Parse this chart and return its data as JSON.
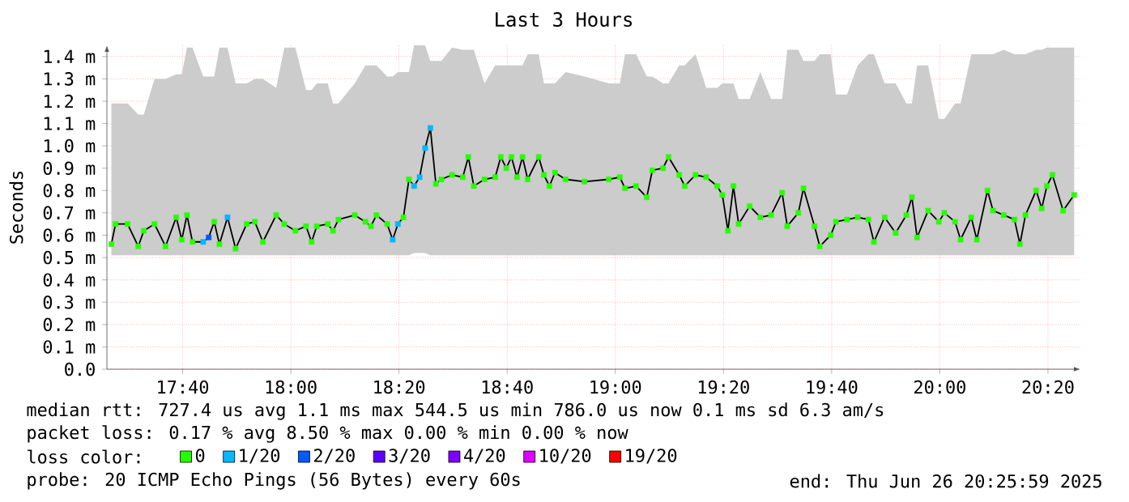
{
  "chart_data": {
    "type": "line",
    "title": "Last 3 Hours",
    "ylabel": "Seconds",
    "legend_title": "loss color:",
    "xlim": [
      17.4333,
      20.4333
    ],
    "ylim": [
      0,
      1.45
    ],
    "xticks": [
      {
        "value": 17.6667,
        "label": "17:40"
      },
      {
        "value": 18,
        "label": "18:00"
      },
      {
        "value": 18.3333,
        "label": "18:20"
      },
      {
        "value": 18.6667,
        "label": "18:40"
      },
      {
        "value": 19,
        "label": "19:00"
      },
      {
        "value": 19.3333,
        "label": "19:20"
      },
      {
        "value": 19.6667,
        "label": "19:40"
      },
      {
        "value": 20,
        "label": "20:00"
      },
      {
        "value": 20.3333,
        "label": "20:20"
      }
    ],
    "yticks": [
      {
        "value": 0,
        "label": "0.0"
      },
      {
        "value": 0.1,
        "label": "0.1 m"
      },
      {
        "value": 0.2,
        "label": "0.2 m"
      },
      {
        "value": 0.3,
        "label": "0.3 m"
      },
      {
        "value": 0.4,
        "label": "0.4 m"
      },
      {
        "value": 0.5,
        "label": "0.5 m"
      },
      {
        "value": 0.6,
        "label": "0.6 m"
      },
      {
        "value": 0.7,
        "label": "0.7 m"
      },
      {
        "value": 0.8,
        "label": "0.8 m"
      },
      {
        "value": 0.9,
        "label": "0.9 m"
      },
      {
        "value": 1.0,
        "label": "1.0 m"
      },
      {
        "value": 1.1,
        "label": "1.1 m"
      },
      {
        "value": 1.2,
        "label": "1.2 m"
      },
      {
        "value": 1.3,
        "label": "1.3 m"
      },
      {
        "value": 1.4,
        "label": "1.4 m"
      }
    ],
    "grid": true,
    "legend": "bottom",
    "marker": "square",
    "annotations": [
      "median rtt: 727.4 us avg 1.1 ms max 544.5 us min 786.0 us now 0.1 ms sd 6.3 am/s",
      "packet loss: 0.17 % avg 8.50 % max 0.00 % min 0.00 % now",
      "probe: 20 ICMP Echo Pings (56 Bytes) every 60s",
      "end: Thu Jun 26 20:25:59 2025"
    ],
    "series": [
      {
        "color": "#000000",
        "marker": "none",
        "upper": [
          1.19,
          1.19,
          1.19,
          1.14,
          1.14,
          1.3,
          1.3,
          1.32,
          1.32,
          1.44,
          1.44,
          1.31,
          1.31,
          1.31,
          1.44,
          1.44,
          1.28,
          1.28,
          1.3,
          1.3,
          1.26,
          1.44,
          1.44,
          1.25,
          1.25,
          1.28,
          1.28,
          1.19,
          1.19,
          1.28,
          1.36,
          1.36,
          1.36,
          1.31,
          1.31,
          1.33,
          1.33,
          1.33,
          1.45,
          1.45,
          1.45,
          1.38,
          1.38,
          1.38,
          1.44,
          1.43,
          1.43,
          1.43,
          1.28,
          1.36,
          1.36,
          1.36,
          1.36,
          1.36,
          1.36,
          1.41,
          1.41,
          1.28,
          1.28,
          1.28,
          1.33,
          1.31,
          1.28,
          1.28,
          1.41,
          1.41,
          1.31,
          1.31,
          1.28,
          1.28,
          1.36,
          1.36,
          1.41,
          1.26,
          1.26,
          1.28,
          1.28,
          1.28,
          1.21,
          1.21,
          1.33,
          1.21,
          1.21,
          1.43,
          1.43,
          1.38,
          1.38,
          1.41,
          1.41,
          1.23,
          1.23,
          1.36,
          1.41,
          1.41,
          1.28,
          1.28,
          1.19,
          1.19,
          1.36,
          1.36,
          1.12,
          1.12,
          1.19,
          1.19,
          1.41,
          1.41,
          1.41,
          1.41,
          1.43,
          1.41,
          1.41,
          1.41,
          1.43,
          1.43,
          1.44,
          1.44,
          1.44,
          1.44
        ],
        "lower": [
          0.51,
          0.51,
          0.51,
          0.51,
          0.51,
          0.51,
          0.51,
          0.51,
          0.51,
          0.51,
          0.51,
          0.51,
          0.51,
          0.51,
          0.51,
          0.51,
          0.51,
          0.51,
          0.51,
          0.51,
          0.51,
          0.51,
          0.51,
          0.51,
          0.51,
          0.51,
          0.51,
          0.51,
          0.51,
          0.51,
          0.51,
          0.51,
          0.51,
          0.51,
          0.51,
          0.51,
          0.51,
          0.51,
          0.52,
          0.52,
          0.52,
          0.51,
          0.51,
          0.51,
          0.51,
          0.51,
          0.51,
          0.51,
          0.51,
          0.51,
          0.51,
          0.51,
          0.51,
          0.51,
          0.51,
          0.51,
          0.51,
          0.51,
          0.51,
          0.51,
          0.51,
          0.51,
          0.51,
          0.51,
          0.51,
          0.51,
          0.51,
          0.51,
          0.51,
          0.51,
          0.51,
          0.51,
          0.51,
          0.51,
          0.51,
          0.51,
          0.51,
          0.51,
          0.51,
          0.51,
          0.51,
          0.51,
          0.51,
          0.51,
          0.51,
          0.51,
          0.51,
          0.51,
          0.51,
          0.51,
          0.51,
          0.51,
          0.51,
          0.51,
          0.51,
          0.51,
          0.51,
          0.51,
          0.51,
          0.51,
          0.51,
          0.51,
          0.51,
          0.51,
          0.51,
          0.51,
          0.51,
          0.51,
          0.51,
          0.51,
          0.51,
          0.51,
          0.51,
          0.51,
          0.51,
          0.51,
          0.51,
          0.51
        ],
        "x": [
          17.447,
          17.46,
          17.497,
          17.53,
          17.547,
          17.58,
          17.614,
          17.647,
          17.664,
          17.68,
          17.697,
          17.73,
          17.747,
          17.764,
          17.78,
          17.805,
          17.83,
          17.864,
          17.889,
          17.914,
          17.955,
          17.98,
          18.014,
          18.047,
          18.064,
          18.08,
          18.114,
          18.13,
          18.147,
          18.197,
          18.23,
          18.247,
          18.264,
          18.297,
          18.314,
          18.33,
          18.347,
          18.364,
          18.38,
          18.397,
          18.414,
          18.43,
          18.447,
          18.464,
          18.497,
          18.53,
          18.547,
          18.564,
          18.597,
          18.63,
          18.647,
          18.664,
          18.68,
          18.697,
          18.714,
          18.73,
          18.764,
          18.78,
          18.797,
          18.814,
          18.847,
          18.905,
          18.98,
          19.014,
          19.03,
          19.064,
          19.097,
          19.114,
          19.147,
          19.164,
          19.197,
          19.214,
          19.247,
          19.28,
          19.314,
          19.33,
          19.347,
          19.364,
          19.38,
          19.414,
          19.447,
          19.48,
          19.514,
          19.53,
          19.564,
          19.58,
          19.614,
          19.63,
          19.664,
          19.68,
          19.714,
          19.747,
          19.78,
          19.797,
          19.83,
          19.864,
          19.897,
          19.914,
          19.93,
          19.964,
          19.997,
          20.014,
          20.047,
          20.064,
          20.097,
          20.114,
          20.147,
          20.164,
          20.197,
          20.23,
          20.247,
          20.264,
          20.297,
          20.314,
          20.33,
          20.347,
          20.38,
          20.414
        ],
        "values": [
          0.56,
          0.65,
          0.65,
          0.55,
          0.62,
          0.65,
          0.55,
          0.68,
          0.58,
          0.69,
          0.57,
          0.57,
          0.59,
          0.66,
          0.56,
          0.68,
          0.54,
          0.65,
          0.66,
          0.57,
          0.69,
          0.65,
          0.62,
          0.64,
          0.57,
          0.64,
          0.65,
          0.62,
          0.67,
          0.69,
          0.66,
          0.64,
          0.69,
          0.65,
          0.58,
          0.65,
          0.68,
          0.85,
          0.82,
          0.86,
          0.99,
          1.08,
          0.83,
          0.85,
          0.87,
          0.86,
          0.95,
          0.82,
          0.85,
          0.86,
          0.95,
          0.9,
          0.95,
          0.86,
          0.95,
          0.85,
          0.95,
          0.87,
          0.82,
          0.88,
          0.85,
          0.84,
          0.85,
          0.86,
          0.81,
          0.82,
          0.77,
          0.89,
          0.9,
          0.95,
          0.87,
          0.82,
          0.87,
          0.86,
          0.82,
          0.78,
          0.62,
          0.82,
          0.65,
          0.73,
          0.68,
          0.69,
          0.79,
          0.64,
          0.7,
          0.81,
          0.64,
          0.55,
          0.6,
          0.66,
          0.67,
          0.68,
          0.67,
          0.57,
          0.68,
          0.61,
          0.69,
          0.77,
          0.59,
          0.71,
          0.66,
          0.7,
          0.66,
          0.58,
          0.68,
          0.58,
          0.8,
          0.71,
          0.69,
          0.67,
          0.56,
          0.69,
          0.8,
          0.72,
          0.82,
          0.87,
          0.71,
          0.78
        ]
      },
      {
        "type": "scatter",
        "name": "0",
        "color": "#26ff00",
        "x": [
          17.447,
          17.46,
          17.497,
          17.53,
          17.547,
          17.58,
          17.614,
          17.647,
          17.664,
          17.68,
          17.697,
          17.764,
          17.78,
          17.83,
          17.864,
          17.889,
          17.914,
          17.955,
          17.98,
          18.014,
          18.047,
          18.064,
          18.08,
          18.114,
          18.13,
          18.147,
          18.197,
          18.23,
          18.247,
          18.264,
          18.297,
          18.347,
          18.364,
          18.447,
          18.464,
          18.497,
          18.53,
          18.547,
          18.564,
          18.597,
          18.63,
          18.647,
          18.664,
          18.68,
          18.697,
          18.714,
          18.73,
          18.764,
          18.78,
          18.797,
          18.814,
          18.847,
          18.905,
          18.98,
          19.014,
          19.03,
          19.064,
          19.097,
          19.114,
          19.147,
          19.164,
          19.197,
          19.214,
          19.247,
          19.28,
          19.314,
          19.33,
          19.347,
          19.364,
          19.38,
          19.414,
          19.447,
          19.48,
          19.514,
          19.53,
          19.564,
          19.58,
          19.614,
          19.63,
          19.664,
          19.68,
          19.714,
          19.747,
          19.78,
          19.797,
          19.83,
          19.864,
          19.897,
          19.914,
          19.93,
          19.964,
          19.997,
          20.014,
          20.047,
          20.064,
          20.097,
          20.114,
          20.147,
          20.164,
          20.197,
          20.23,
          20.247,
          20.264,
          20.297,
          20.314,
          20.33,
          20.347,
          20.38,
          20.414
        ],
        "values": [
          0.56,
          0.65,
          0.65,
          0.55,
          0.62,
          0.65,
          0.55,
          0.68,
          0.58,
          0.69,
          0.57,
          0.66,
          0.56,
          0.54,
          0.65,
          0.66,
          0.57,
          0.69,
          0.65,
          0.62,
          0.64,
          0.57,
          0.64,
          0.65,
          0.62,
          0.67,
          0.69,
          0.66,
          0.64,
          0.69,
          0.65,
          0.68,
          0.85,
          0.83,
          0.85,
          0.87,
          0.86,
          0.95,
          0.82,
          0.85,
          0.86,
          0.95,
          0.9,
          0.95,
          0.86,
          0.95,
          0.85,
          0.95,
          0.87,
          0.82,
          0.88,
          0.85,
          0.84,
          0.85,
          0.86,
          0.81,
          0.82,
          0.77,
          0.89,
          0.9,
          0.95,
          0.87,
          0.82,
          0.87,
          0.86,
          0.82,
          0.78,
          0.62,
          0.82,
          0.65,
          0.73,
          0.68,
          0.69,
          0.79,
          0.64,
          0.7,
          0.81,
          0.64,
          0.55,
          0.6,
          0.66,
          0.67,
          0.68,
          0.67,
          0.57,
          0.68,
          0.61,
          0.69,
          0.77,
          0.59,
          0.71,
          0.66,
          0.7,
          0.66,
          0.58,
          0.68,
          0.58,
          0.8,
          0.71,
          0.69,
          0.67,
          0.56,
          0.69,
          0.8,
          0.72,
          0.82,
          0.87,
          0.71,
          0.78
        ]
      },
      {
        "type": "scatter",
        "name": "1/20",
        "color": "#00b8ff",
        "x": [
          17.73,
          17.805,
          18.314,
          18.33,
          18.38,
          18.397,
          18.414,
          18.43
        ],
        "values": [
          0.57,
          0.68,
          0.58,
          0.65,
          0.82,
          0.86,
          0.99,
          1.08
        ]
      },
      {
        "type": "scatter",
        "name": "2/20",
        "color": "#0059ff",
        "x": [
          17.747
        ],
        "values": [
          0.59
        ]
      },
      {
        "type": "scatter",
        "name": "3/20",
        "color": "#5e00ff"
      },
      {
        "type": "scatter",
        "name": "4/20",
        "color": "#7e00ff"
      },
      {
        "type": "scatter",
        "name": "10/20",
        "color": "#dd00ff"
      },
      {
        "type": "scatter",
        "name": "19/20",
        "color": "#ff0000"
      }
    ]
  }
}
